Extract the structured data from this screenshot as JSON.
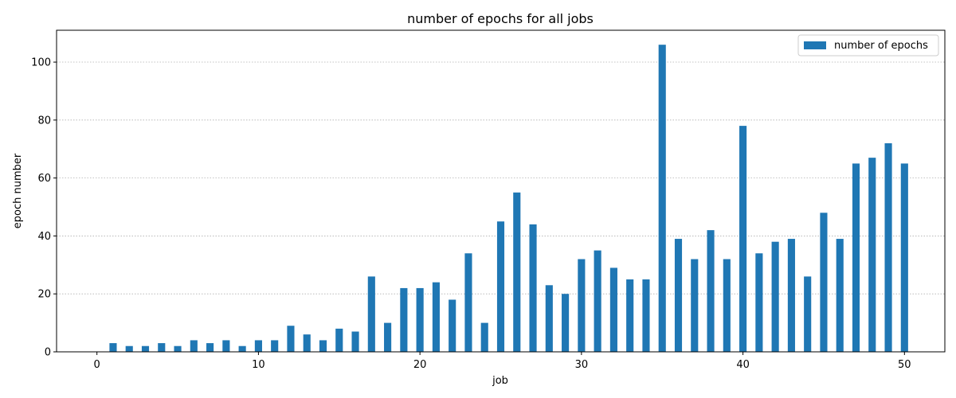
{
  "chart_data": {
    "type": "bar",
    "title": "number of epochs for all jobs",
    "xlabel": "job",
    "ylabel": "epoch number",
    "x": [
      1,
      2,
      3,
      4,
      5,
      6,
      7,
      8,
      9,
      10,
      11,
      12,
      13,
      14,
      15,
      16,
      17,
      18,
      19,
      20,
      21,
      22,
      23,
      24,
      25,
      26,
      27,
      28,
      29,
      30,
      31,
      32,
      33,
      34,
      35,
      36,
      37,
      38,
      39,
      40,
      41,
      42,
      43,
      44,
      45,
      46,
      47,
      48,
      49,
      50
    ],
    "series": [
      {
        "name": "number of epochs",
        "color": "#1f77b4",
        "values": [
          3,
          2,
          2,
          3,
          2,
          4,
          3,
          4,
          2,
          4,
          4,
          9,
          6,
          4,
          8,
          7,
          26,
          10,
          22,
          22,
          24,
          18,
          34,
          10,
          45,
          55,
          44,
          23,
          20,
          32,
          35,
          29,
          25,
          25,
          106,
          39,
          32,
          42,
          32,
          78,
          34,
          38,
          39,
          26,
          48,
          39,
          65,
          67,
          72,
          65
        ]
      }
    ],
    "xlim": [
      -2.5,
      52.5
    ],
    "ylim": [
      0,
      111
    ],
    "xticks": [
      0,
      10,
      20,
      30,
      40,
      50
    ],
    "yticks": [
      0,
      20,
      40,
      60,
      80,
      100
    ],
    "grid": "y-dotted",
    "legend": "top-right"
  }
}
